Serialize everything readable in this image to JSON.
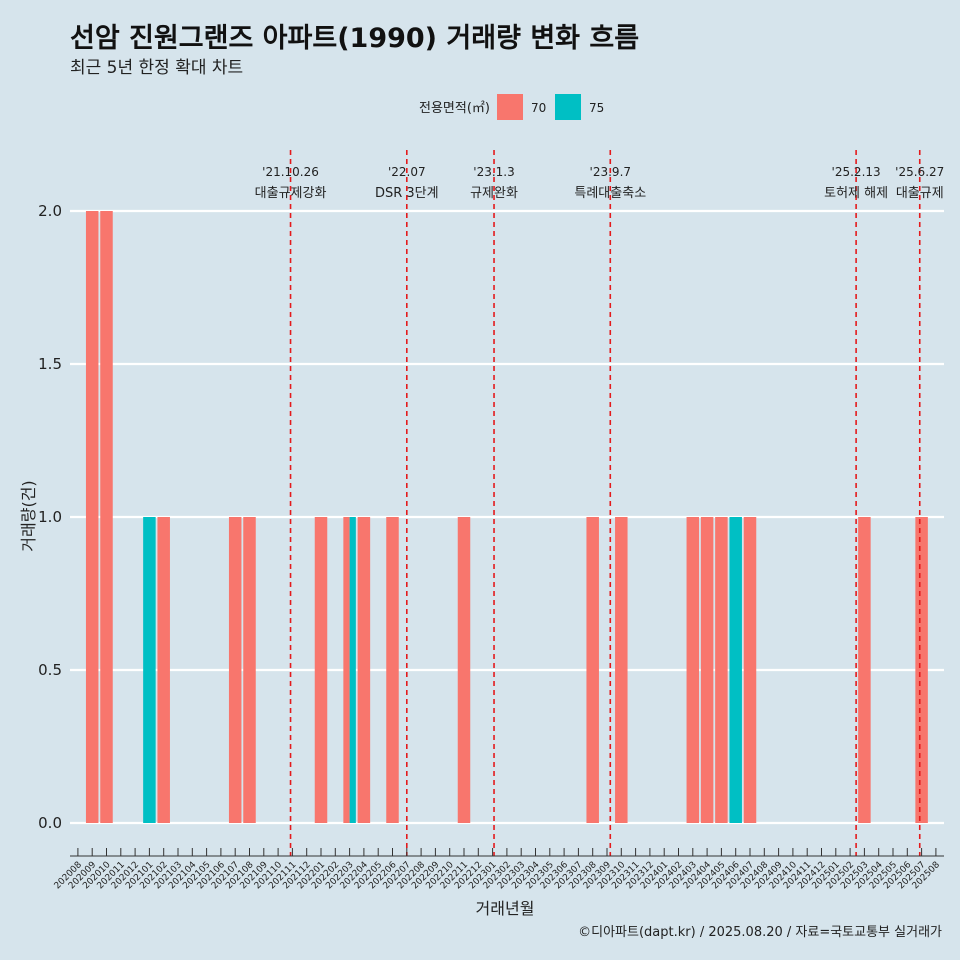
{
  "header": {
    "title": "선암 진원그랜즈 아파트(1990) 거래량 변화 흐름",
    "subtitle": "최근 5년 한정 확대 차트"
  },
  "caption": "©디아파트(dapt.kr) / 2025.08.20 / 자료=국토교통부 실거래가",
  "colors": {
    "background": "#d6e4ec",
    "area70": "#f8766d",
    "area75": "#00bfc4",
    "event_line": "#e41a1c"
  },
  "chart_data": {
    "type": "bar",
    "stacking": "dodge",
    "title": "선암 진원그랜즈 아파트(1990) 거래량 변화 흐름",
    "subtitle": "최근 5년 한정 확대 차트",
    "xlabel": "거래년월",
    "ylabel": "거래량(건)",
    "ylim": [
      0,
      2
    ],
    "yticks": [
      0.0,
      0.5,
      1.0,
      1.5,
      2.0
    ],
    "ytick_labels": [
      "0.0",
      "0.5",
      "1.0",
      "1.5",
      "2.0"
    ],
    "grid": true,
    "legend": {
      "title": "전용면적(㎡)",
      "position": "top",
      "entries": [
        "70",
        "75"
      ]
    },
    "categories": [
      "202008",
      "202009",
      "202010",
      "202011",
      "202012",
      "202101",
      "202102",
      "202103",
      "202104",
      "202105",
      "202106",
      "202107",
      "202108",
      "202109",
      "202110",
      "202111",
      "202112",
      "202201",
      "202202",
      "202203",
      "202204",
      "202205",
      "202206",
      "202207",
      "202208",
      "202209",
      "202210",
      "202211",
      "202212",
      "202301",
      "202302",
      "202303",
      "202304",
      "202305",
      "202306",
      "202307",
      "202308",
      "202309",
      "202310",
      "202311",
      "202312",
      "202401",
      "202402",
      "202403",
      "202404",
      "202405",
      "202406",
      "202407",
      "202408",
      "202409",
      "202410",
      "202411",
      "202412",
      "202501",
      "202502",
      "202503",
      "202504",
      "202505",
      "202506",
      "202507",
      "202508"
    ],
    "series": [
      {
        "name": "70",
        "color": "#f8766d",
        "values": [
          0,
          2,
          2,
          0,
          0,
          0,
          1,
          0,
          0,
          0,
          0,
          1,
          1,
          0,
          0,
          0,
          0,
          1,
          0,
          1,
          1,
          0,
          1,
          0,
          0,
          0,
          0,
          1,
          0,
          0,
          0,
          0,
          0,
          0,
          0,
          0,
          1,
          0,
          1,
          0,
          0,
          0,
          0,
          1,
          1,
          1,
          0,
          1,
          0,
          0,
          0,
          0,
          0,
          0,
          0,
          1,
          0,
          0,
          0,
          1,
          0
        ]
      },
      {
        "name": "75",
        "color": "#00bfc4",
        "values": [
          0,
          0,
          0,
          0,
          0,
          1,
          0,
          0,
          0,
          0,
          0,
          0,
          0,
          0,
          0,
          0,
          0,
          0,
          0,
          1,
          0,
          0,
          0,
          0,
          0,
          0,
          0,
          0,
          0,
          0,
          0,
          0,
          0,
          0,
          0,
          0,
          0,
          0,
          0,
          0,
          0,
          0,
          0,
          0,
          0,
          0,
          1,
          0,
          0,
          0,
          0,
          0,
          0,
          0,
          0,
          0,
          0,
          0,
          0,
          0,
          0
        ]
      }
    ],
    "events": [
      {
        "date": "'21.10.26",
        "label": "대출규제강화",
        "at_month": "202110",
        "offset": 0.87
      },
      {
        "date": "'22.07",
        "label": "DSR 3단계",
        "at_month": "202207",
        "offset": 0.0
      },
      {
        "date": "'23.1.3",
        "label": "규제완화",
        "at_month": "202301",
        "offset": 0.1
      },
      {
        "date": "'23.9.7",
        "label": "특례대출축소",
        "at_month": "202309",
        "offset": 0.23
      },
      {
        "date": "'25.2.13",
        "label": "토허제 해제",
        "at_month": "202502",
        "offset": 0.42
      },
      {
        "date": "'25.6.27",
        "label": "대출규제",
        "at_month": "202506",
        "offset": 0.87
      }
    ]
  }
}
